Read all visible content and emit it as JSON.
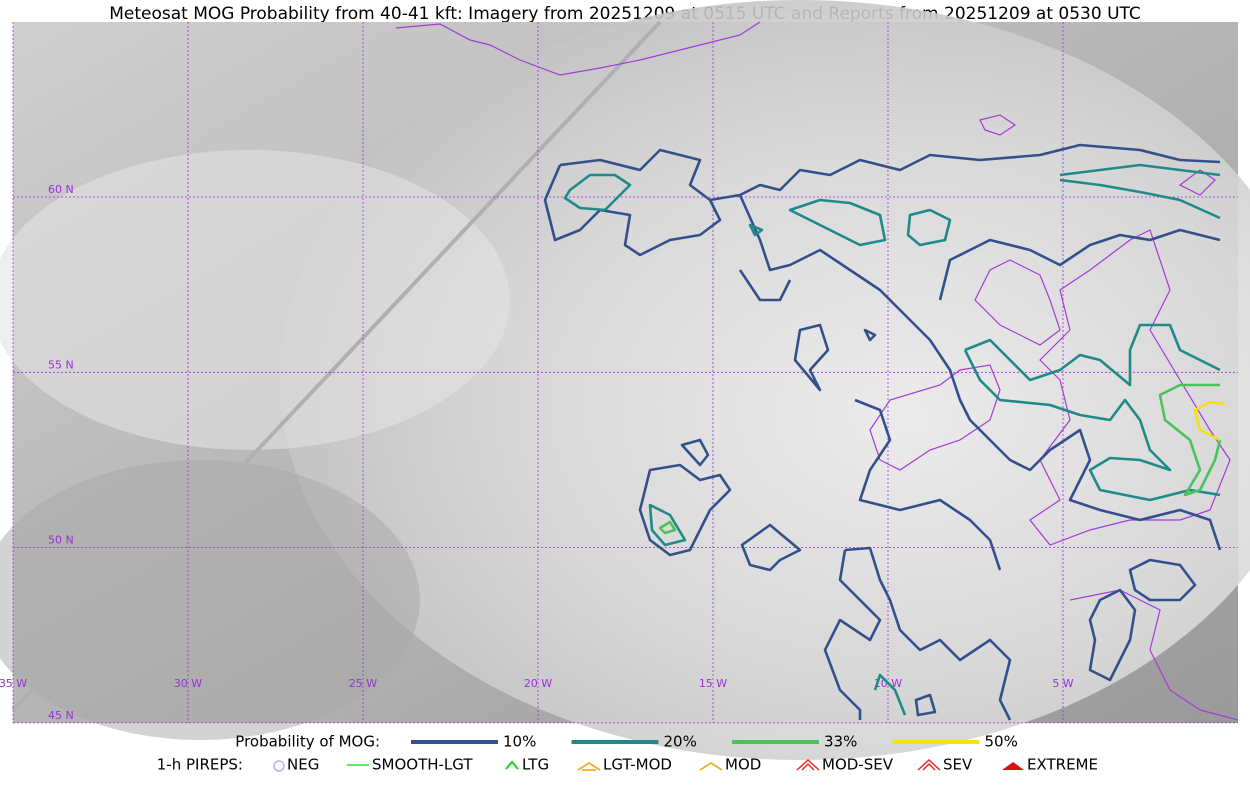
{
  "title": "Meteosat MOG Probability from 40-41 kft: Imagery from 20251209 at 0515 UTC and Reports from 20251209 at 0530 UTC",
  "lat_labels": [
    "60 N",
    "55 N",
    "50 N",
    "45 N"
  ],
  "lon_labels": [
    "35 W",
    "30 W",
    "25 W",
    "20 W",
    "15 W",
    "10 W",
    "5 W"
  ],
  "legend": {
    "title": "Probability of MOG:",
    "items": [
      {
        "label": "10%",
        "color": "#34508c"
      },
      {
        "label": "20%",
        "color": "#1f8a87"
      },
      {
        "label": "33%",
        "color": "#4cc35a"
      },
      {
        "label": "50%",
        "color": "#f5e01a"
      }
    ]
  },
  "pireps": {
    "title": "1-h PIREPS:",
    "items": [
      {
        "label": "NEG",
        "color": "#b0b0ff"
      },
      {
        "label": "SMOOTH-LGT",
        "color": "#33dd33"
      },
      {
        "label": "LTG",
        "color": "#22cc22"
      },
      {
        "label": "LGT-MOD",
        "color": "#f0b020"
      },
      {
        "label": "MOD",
        "color": "#f0b020"
      },
      {
        "label": "MOD-SEV",
        "color": "#e03030"
      },
      {
        "label": "SEV",
        "color": "#e03030"
      },
      {
        "label": "EXTREME",
        "color": "#dd1111"
      }
    ]
  }
}
